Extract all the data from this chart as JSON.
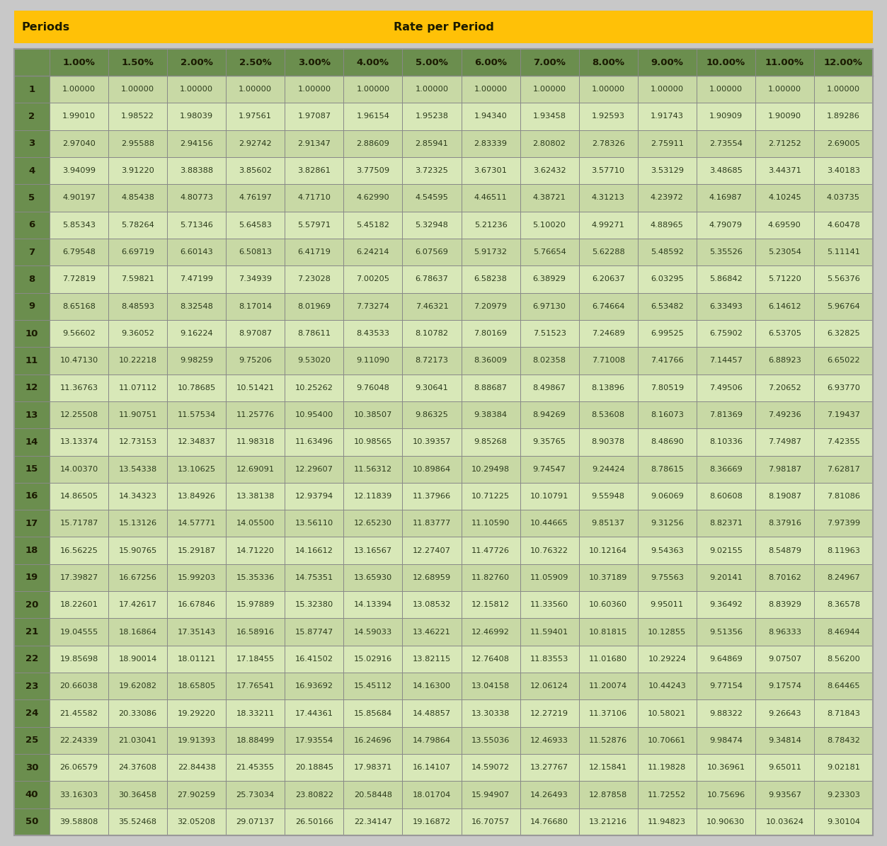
{
  "title_left": "Periods",
  "title_center": "Rate per Period",
  "header_bg": "#FFC107",
  "header_text_color": "#1a1a00",
  "col_header_bg": "#6B8E4E",
  "col_header_text_color": "#1a1a00",
  "row_header_bg": "#6B8E4E",
  "cell_text_color": "#2a3a1a",
  "col_headers": [
    "1.00%",
    "1.50%",
    "2.00%",
    "2.50%",
    "3.00%",
    "4.00%",
    "5.00%",
    "6.00%",
    "7.00%",
    "8.00%",
    "9.00%",
    "10.00%",
    "11.00%",
    "12.00%"
  ],
  "row_labels": [
    "1",
    "2",
    "3",
    "4",
    "5",
    "6",
    "7",
    "8",
    "9",
    "10",
    "11",
    "12",
    "13",
    "14",
    "15",
    "16",
    "17",
    "18",
    "19",
    "20",
    "21",
    "22",
    "23",
    "24",
    "25",
    "30",
    "40",
    "50"
  ],
  "table_data": [
    [
      1.0,
      1.0,
      1.0,
      1.0,
      1.0,
      1.0,
      1.0,
      1.0,
      1.0,
      1.0,
      1.0,
      1.0,
      1.0,
      1.0
    ],
    [
      1.9901,
      1.98522,
      1.98039,
      1.97561,
      1.97087,
      1.96154,
      1.95238,
      1.9434,
      1.93458,
      1.92593,
      1.91743,
      1.90909,
      1.9009,
      1.89286
    ],
    [
      2.9704,
      2.95588,
      2.94156,
      2.92742,
      2.91347,
      2.88609,
      2.85941,
      2.83339,
      2.80802,
      2.78326,
      2.75911,
      2.73554,
      2.71252,
      2.69005
    ],
    [
      3.94099,
      3.9122,
      3.88388,
      3.85602,
      3.82861,
      3.77509,
      3.72325,
      3.67301,
      3.62432,
      3.5771,
      3.53129,
      3.48685,
      3.44371,
      3.40183
    ],
    [
      4.90197,
      4.85438,
      4.80773,
      4.76197,
      4.7171,
      4.6299,
      4.54595,
      4.46511,
      4.38721,
      4.31213,
      4.23972,
      4.16987,
      4.10245,
      4.03735
    ],
    [
      5.85343,
      5.78264,
      5.71346,
      5.64583,
      5.57971,
      5.45182,
      5.32948,
      5.21236,
      5.1002,
      4.99271,
      4.88965,
      4.79079,
      4.6959,
      4.60478
    ],
    [
      6.79548,
      6.69719,
      6.60143,
      6.50813,
      6.41719,
      6.24214,
      6.07569,
      5.91732,
      5.76654,
      5.62288,
      5.48592,
      5.35526,
      5.23054,
      5.11141
    ],
    [
      7.72819,
      7.59821,
      7.47199,
      7.34939,
      7.23028,
      7.00205,
      6.78637,
      6.58238,
      6.38929,
      6.20637,
      6.03295,
      5.86842,
      5.7122,
      5.56376
    ],
    [
      8.65168,
      8.48593,
      8.32548,
      8.17014,
      8.01969,
      7.73274,
      7.46321,
      7.20979,
      6.9713,
      6.74664,
      6.53482,
      6.33493,
      6.14612,
      5.96764
    ],
    [
      9.56602,
      9.36052,
      9.16224,
      8.97087,
      8.78611,
      8.43533,
      8.10782,
      7.80169,
      7.51523,
      7.24689,
      6.99525,
      6.75902,
      6.53705,
      6.32825
    ],
    [
      10.4713,
      10.22218,
      9.98259,
      9.75206,
      9.5302,
      9.1109,
      8.72173,
      8.36009,
      8.02358,
      7.71008,
      7.41766,
      7.14457,
      6.88923,
      6.65022
    ],
    [
      11.36763,
      11.07112,
      10.78685,
      10.51421,
      10.25262,
      9.76048,
      9.30641,
      8.88687,
      8.49867,
      8.13896,
      7.80519,
      7.49506,
      7.20652,
      6.9377
    ],
    [
      12.25508,
      11.90751,
      11.57534,
      11.25776,
      10.954,
      10.38507,
      9.86325,
      9.38384,
      8.94269,
      8.53608,
      8.16073,
      7.81369,
      7.49236,
      7.19437
    ],
    [
      13.13374,
      12.73153,
      12.34837,
      11.98318,
      11.63496,
      10.98565,
      10.39357,
      9.85268,
      9.35765,
      8.90378,
      8.4869,
      8.10336,
      7.74987,
      7.42355
    ],
    [
      14.0037,
      13.54338,
      13.10625,
      12.69091,
      12.29607,
      11.56312,
      10.89864,
      10.29498,
      9.74547,
      9.24424,
      8.78615,
      8.36669,
      7.98187,
      7.62817
    ],
    [
      14.86505,
      14.34323,
      13.84926,
      13.38138,
      12.93794,
      12.11839,
      11.37966,
      10.71225,
      10.10791,
      9.55948,
      9.06069,
      8.60608,
      8.19087,
      7.81086
    ],
    [
      15.71787,
      15.13126,
      14.57771,
      14.055,
      13.5611,
      12.6523,
      11.83777,
      11.1059,
      10.44665,
      9.85137,
      9.31256,
      8.82371,
      8.37916,
      7.97399
    ],
    [
      16.56225,
      15.90765,
      15.29187,
      14.7122,
      14.16612,
      13.16567,
      12.27407,
      11.47726,
      10.76322,
      10.12164,
      9.54363,
      9.02155,
      8.54879,
      8.11963
    ],
    [
      17.39827,
      16.67256,
      15.99203,
      15.35336,
      14.75351,
      13.6593,
      12.68959,
      11.8276,
      11.05909,
      10.37189,
      9.75563,
      9.20141,
      8.70162,
      8.24967
    ],
    [
      18.22601,
      17.42617,
      16.67846,
      15.97889,
      15.3238,
      14.13394,
      13.08532,
      12.15812,
      11.3356,
      10.6036,
      9.95011,
      9.36492,
      8.83929,
      8.36578
    ],
    [
      19.04555,
      18.16864,
      17.35143,
      16.58916,
      15.87747,
      14.59033,
      13.46221,
      12.46992,
      11.59401,
      10.81815,
      10.12855,
      9.51356,
      8.96333,
      8.46944
    ],
    [
      19.85698,
      18.90014,
      18.01121,
      17.18455,
      16.41502,
      15.02916,
      13.82115,
      12.76408,
      11.83553,
      11.0168,
      10.29224,
      9.64869,
      9.07507,
      8.562
    ],
    [
      20.66038,
      19.62082,
      18.65805,
      17.76541,
      16.93692,
      15.45112,
      14.163,
      13.04158,
      12.06124,
      11.20074,
      10.44243,
      9.77154,
      9.17574,
      8.64465
    ],
    [
      21.45582,
      20.33086,
      19.2922,
      18.33211,
      17.44361,
      15.85684,
      14.48857,
      13.30338,
      12.27219,
      11.37106,
      10.58021,
      9.88322,
      9.26643,
      8.71843
    ],
    [
      22.24339,
      21.03041,
      19.91393,
      18.88499,
      17.93554,
      16.24696,
      14.79864,
      13.55036,
      12.46933,
      11.52876,
      10.70661,
      9.98474,
      9.34814,
      8.78432
    ],
    [
      26.06579,
      24.37608,
      22.84438,
      21.45355,
      20.18845,
      17.98371,
      16.14107,
      14.59072,
      13.27767,
      12.15841,
      11.19828,
      10.36961,
      9.65011,
      9.02181
    ],
    [
      33.16303,
      30.36458,
      27.90259,
      25.73034,
      23.80822,
      20.58448,
      18.01704,
      15.94907,
      14.26493,
      12.87858,
      11.72552,
      10.75696,
      9.93567,
      9.23303
    ],
    [
      39.58808,
      35.52468,
      32.05208,
      29.07137,
      26.50166,
      22.34147,
      19.16872,
      16.70757,
      14.7668,
      13.21216,
      11.94823,
      10.9063,
      10.03624,
      9.30104
    ]
  ],
  "outer_bg": "#c8c8c8",
  "table_bg": "#ffffff",
  "border_color": "#999999",
  "grid_color": "#888888"
}
